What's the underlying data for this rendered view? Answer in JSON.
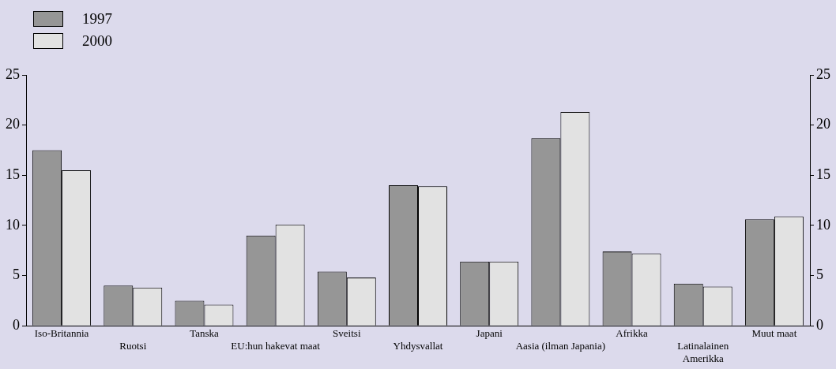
{
  "chart_data": {
    "type": "bar",
    "categories": [
      "Iso-Britannia",
      "Ruotsi",
      "Tanska",
      "EU:hun hakevat maat",
      "Sveitsi",
      "Yhdysvallat",
      "Japani",
      "Aasia (ilman Japania)",
      "Afrikka",
      "Latinalainen Amerikka",
      "Muut maat"
    ],
    "series": [
      {
        "name": "1997",
        "color": "#969696",
        "values": [
          17.5,
          4.0,
          2.5,
          9.0,
          5.4,
          14.0,
          6.4,
          18.7,
          7.4,
          4.2,
          10.6
        ]
      },
      {
        "name": "2000",
        "color": "#e2e2e2",
        "values": [
          15.5,
          3.8,
          2.1,
          10.1,
          4.8,
          13.9,
          6.4,
          21.3,
          7.2,
          3.9,
          10.9
        ]
      }
    ],
    "ylim": [
      0,
      25
    ],
    "yticks": [
      0,
      5,
      10,
      15,
      20,
      25
    ],
    "y2lim": [
      0,
      25
    ],
    "y2ticks": [
      0,
      5,
      10,
      15,
      20,
      25
    ],
    "grid": false,
    "legend": "top left"
  }
}
